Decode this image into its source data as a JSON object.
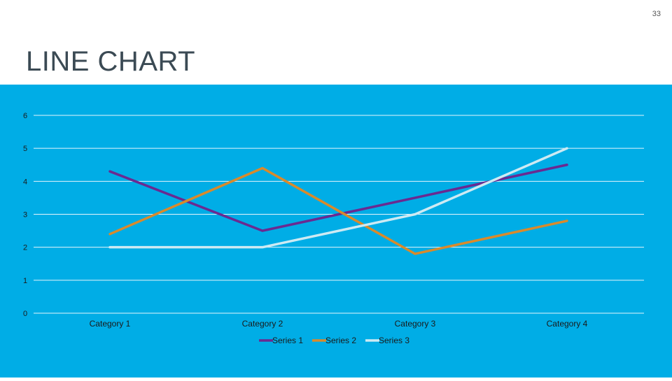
{
  "slide": {
    "page_number": "33",
    "title": "LINE CHART"
  },
  "colors": {
    "panel_background": "#00ade6",
    "gridline": "#e6f5fc",
    "text": "#1a1a1a"
  },
  "chart_data": {
    "type": "line",
    "categories": [
      "Category 1",
      "Category 2",
      "Category 3",
      "Category 4"
    ],
    "series": [
      {
        "name": "Series 1",
        "values": [
          4.3,
          2.5,
          3.5,
          4.5
        ],
        "color": "#6a2a91"
      },
      {
        "name": "Series 2",
        "values": [
          2.4,
          4.4,
          1.8,
          2.8
        ],
        "color": "#d98a2b"
      },
      {
        "name": "Series 3",
        "values": [
          2,
          2,
          3,
          5
        ],
        "color": "#cdeaf3"
      }
    ],
    "ylim": [
      0,
      6
    ],
    "yticks": [
      0,
      1,
      2,
      3,
      4,
      5,
      6
    ],
    "grid": true,
    "legend": "bottom"
  }
}
